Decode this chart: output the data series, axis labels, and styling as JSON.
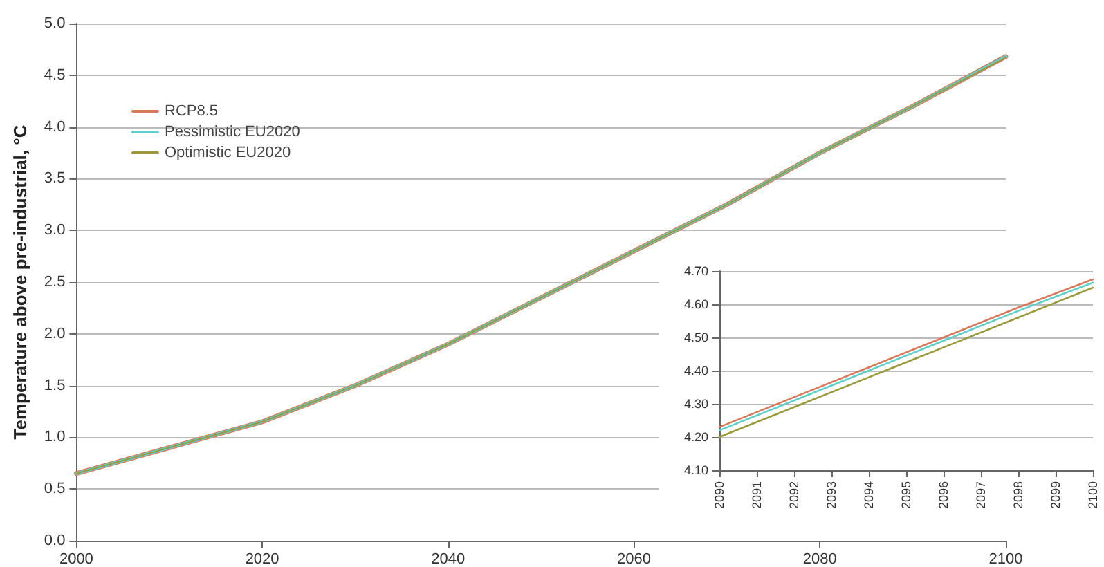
{
  "chart_data": [
    {
      "type": "line",
      "ylabel": "Temperature above pre-industrial, °C",
      "x": [
        2000,
        2010,
        2020,
        2030,
        2040,
        2050,
        2060,
        2070,
        2080,
        2090,
        2100
      ],
      "xlim": [
        2000,
        2100
      ],
      "xticks": [
        2000,
        2020,
        2040,
        2060,
        2080,
        2100
      ],
      "ylim": [
        0,
        5
      ],
      "yticks": [
        {
          "value": 0,
          "label": "0.0"
        },
        0.5,
        {
          "value": 1,
          "label": "1.0"
        },
        1.5,
        {
          "value": 2,
          "label": "2.0"
        },
        2.5,
        {
          "value": 3,
          "label": "3.0"
        },
        3.5,
        {
          "value": 4,
          "label": "4.0"
        },
        4.5,
        {
          "value": 5,
          "label": "5.0"
        }
      ],
      "grid": "y",
      "legend": "top left",
      "line_style": "solid",
      "series": [
        {
          "name": "RCP8.5",
          "color": "#d9785a",
          "values": [
            0.65,
            0.9,
            1.15,
            1.5,
            1.9,
            2.35,
            2.8,
            3.25,
            3.75,
            4.2,
            4.68
          ]
        },
        {
          "name": "Pessimistic EU2020",
          "color": "#5fd0c8",
          "values": [
            0.65,
            0.9,
            1.15,
            1.5,
            1.9,
            2.35,
            2.8,
            3.25,
            3.75,
            4.2,
            4.68
          ]
        },
        {
          "name": "Optimistic EU2020",
          "color": "#9a9a3a",
          "values": [
            0.65,
            0.9,
            1.15,
            1.5,
            1.9,
            2.35,
            2.8,
            3.25,
            3.75,
            4.2,
            4.67
          ]
        }
      ]
    },
    {
      "type": "line",
      "x": [
        2090,
        2092,
        2094,
        2096,
        2098,
        2100
      ],
      "xlim": [
        2090,
        2100
      ],
      "xticks": [
        2090,
        2091,
        2092,
        2093,
        2094,
        2095,
        2096,
        2097,
        2098,
        2099,
        2100
      ],
      "ylim": [
        4.1,
        4.7
      ],
      "yticks": [
        {
          "value": 4.1,
          "label": "4.10"
        },
        {
          "value": 4.2,
          "label": "4.20"
        },
        {
          "value": 4.3,
          "label": "4.30"
        },
        {
          "value": 4.4,
          "label": "4.40"
        },
        {
          "value": 4.5,
          "label": "4.50"
        },
        {
          "value": 4.6,
          "label": "4.60"
        },
        {
          "value": 4.7,
          "label": "4.70"
        }
      ],
      "grid": "y",
      "line_style": "solid",
      "series": [
        {
          "color": "#d9785a",
          "values": [
            4.23,
            4.32,
            4.41,
            4.5,
            4.59,
            4.675
          ]
        },
        {
          "color": "#5fd0c8",
          "values": [
            4.22,
            4.31,
            4.4,
            4.49,
            4.58,
            4.665
          ]
        },
        {
          "color": "#9a9a3a",
          "values": [
            4.2,
            4.29,
            4.38,
            4.47,
            4.56,
            4.65
          ]
        }
      ]
    }
  ]
}
